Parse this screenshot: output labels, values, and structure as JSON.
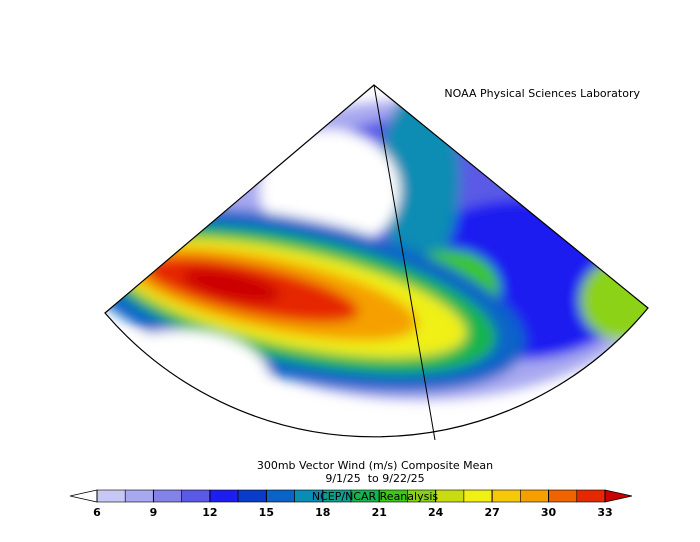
{
  "header": {
    "credit": "NOAA Physical Sciences Laboratory"
  },
  "caption": {
    "title": "300mb Vector Wind (m/s) Composite Mean",
    "dates": "9/1/25  to 9/22/25",
    "source": "NCEP/NCAR Reanalysis"
  },
  "colorbar": {
    "ticks": [
      6,
      9,
      12,
      15,
      18,
      21,
      24,
      27,
      30,
      33
    ],
    "colors": [
      "#c8c8f5",
      "#a8a8f0",
      "#8282e8",
      "#5a5ae6",
      "#1e1ef0",
      "#0a3ccc",
      "#0a64c8",
      "#0a8cb4",
      "#0aa08c",
      "#14b450",
      "#3cc814",
      "#8cd214",
      "#c8dc14",
      "#f0f014",
      "#f5c80a",
      "#f5a000",
      "#f06400",
      "#e62800"
    ],
    "under_color": "#ffffff",
    "over_color": "#cc0000"
  }
}
